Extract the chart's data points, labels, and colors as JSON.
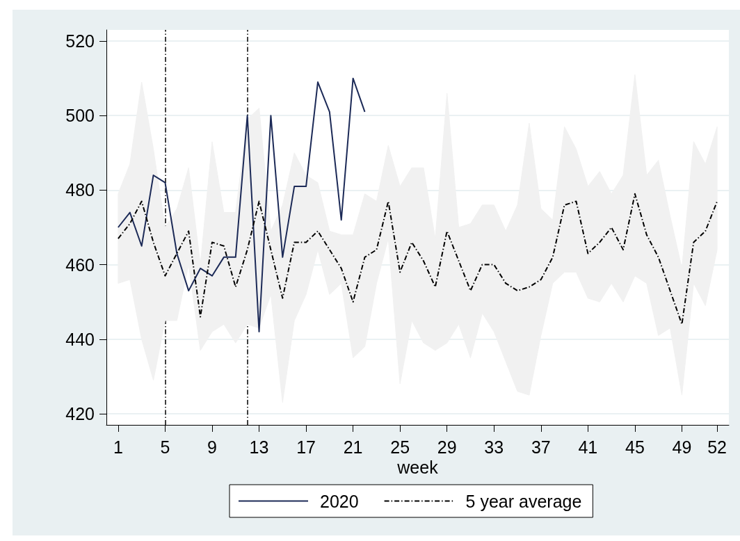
{
  "chart_data": {
    "type": "line",
    "xlabel": "week",
    "x": [
      1,
      2,
      3,
      4,
      5,
      6,
      7,
      8,
      9,
      10,
      11,
      12,
      13,
      14,
      15,
      16,
      17,
      18,
      19,
      20,
      21,
      22,
      23,
      24,
      25,
      26,
      27,
      28,
      29,
      30,
      31,
      32,
      33,
      34,
      35,
      36,
      37,
      38,
      39,
      40,
      41,
      42,
      43,
      44,
      45,
      46,
      47,
      48,
      49,
      50,
      51,
      52
    ],
    "xlim": [
      0,
      53
    ],
    "xticks": [
      1,
      5,
      9,
      13,
      17,
      21,
      25,
      29,
      33,
      37,
      41,
      45,
      49,
      52
    ],
    "ylim": [
      417,
      523
    ],
    "yticks": [
      420,
      440,
      460,
      480,
      500,
      520
    ],
    "grid": "y",
    "legend": "bottom",
    "marker": "none",
    "series": [
      {
        "name": "2020",
        "color": "#1c2a57",
        "x": [
          1,
          2,
          3,
          4,
          5,
          6,
          7,
          8,
          9,
          10,
          11,
          12,
          13,
          14,
          15,
          16,
          17,
          18,
          19,
          20,
          21,
          22
        ],
        "values": [
          470,
          474,
          465,
          484,
          482,
          463,
          453,
          459,
          457,
          462,
          462,
          500,
          442,
          500,
          462,
          481,
          481,
          509,
          501,
          472,
          510,
          501
        ]
      },
      {
        "name": "5 year average",
        "color": "#000000",
        "line_style": "dashed",
        "values": [
          467,
          471,
          477,
          466,
          457,
          463,
          469,
          446,
          466,
          465,
          454,
          464,
          477,
          464,
          451,
          466,
          466,
          469,
          464,
          459,
          450,
          462,
          464,
          477,
          458,
          466,
          461,
          454,
          469,
          461,
          453,
          460,
          460,
          455,
          453,
          454,
          456,
          462,
          476,
          477,
          463,
          466,
          470,
          464,
          479,
          468,
          462,
          453,
          444,
          466,
          469,
          477
        ],
        "upper": [
          479,
          487,
          509,
          491,
          470,
          475,
          486,
          460,
          493,
          474,
          474,
          499,
          502,
          469,
          476,
          490,
          484,
          482,
          469,
          468,
          468,
          479,
          477,
          492,
          481,
          486,
          486,
          467,
          506,
          470,
          471,
          476,
          476,
          469,
          476,
          498,
          475,
          472,
          497,
          491,
          481,
          485,
          479,
          484,
          511,
          484,
          488,
          473,
          459,
          493,
          487,
          497
        ],
        "lower": [
          455,
          456,
          440,
          429,
          445,
          445,
          460,
          437,
          442,
          444,
          439,
          444,
          443,
          452,
          423,
          445,
          452,
          464,
          452,
          455,
          435,
          438,
          455,
          467,
          428,
          445,
          439,
          437,
          439,
          444,
          435,
          447,
          442,
          434,
          426,
          425,
          441,
          455,
          458,
          458,
          451,
          450,
          455,
          450,
          457,
          455,
          441,
          443,
          425,
          455,
          449,
          464
        ]
      }
    ],
    "ref_lines": [
      {
        "axis": "x",
        "value": 5,
        "color": "#000000",
        "line_style": "dashed"
      },
      {
        "axis": "x",
        "value": 12,
        "color": "#000000",
        "line_style": "dashed"
      }
    ]
  }
}
